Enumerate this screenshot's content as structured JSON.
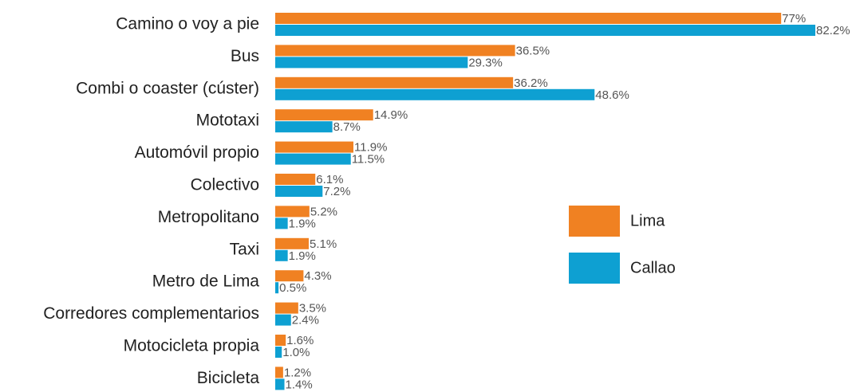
{
  "chart_data": {
    "type": "bar",
    "orientation": "horizontal",
    "categories": [
      "Camino o voy a pie",
      "Bus",
      "Combi o coaster (cúster)",
      "Mototaxi",
      "Automóvil propio",
      "Colectivo",
      "Metropolitano",
      "Taxi",
      "Metro de Lima",
      "Corredores complementarios",
      "Motocicleta propia",
      "Bicicleta"
    ],
    "series": [
      {
        "name": "Lima",
        "color": "#f08122",
        "values": [
          77,
          36.5,
          36.2,
          14.9,
          11.9,
          6.1,
          5.2,
          5.1,
          4.3,
          3.5,
          1.6,
          1.2
        ],
        "value_labels": [
          "77%",
          "36.5%",
          "36.2%",
          "14.9%",
          "11.9%",
          "6.1%",
          "5.2%",
          "5.1%",
          "4.3%",
          "3.5%",
          "1.6%",
          "1.2%"
        ]
      },
      {
        "name": "Callao",
        "color": "#0ea0d2",
        "values": [
          82.2,
          29.3,
          48.6,
          8.7,
          11.5,
          7.2,
          1.9,
          1.9,
          0.5,
          2.4,
          1.0,
          1.4
        ],
        "value_labels": [
          "82.2%",
          "29.3%",
          "48.6%",
          "8.7%",
          "11.5%",
          "7.2%",
          "1.9%",
          "1.9%",
          "0.5%",
          "2.4%",
          "1.0%",
          "1.4%"
        ]
      }
    ]
  }
}
